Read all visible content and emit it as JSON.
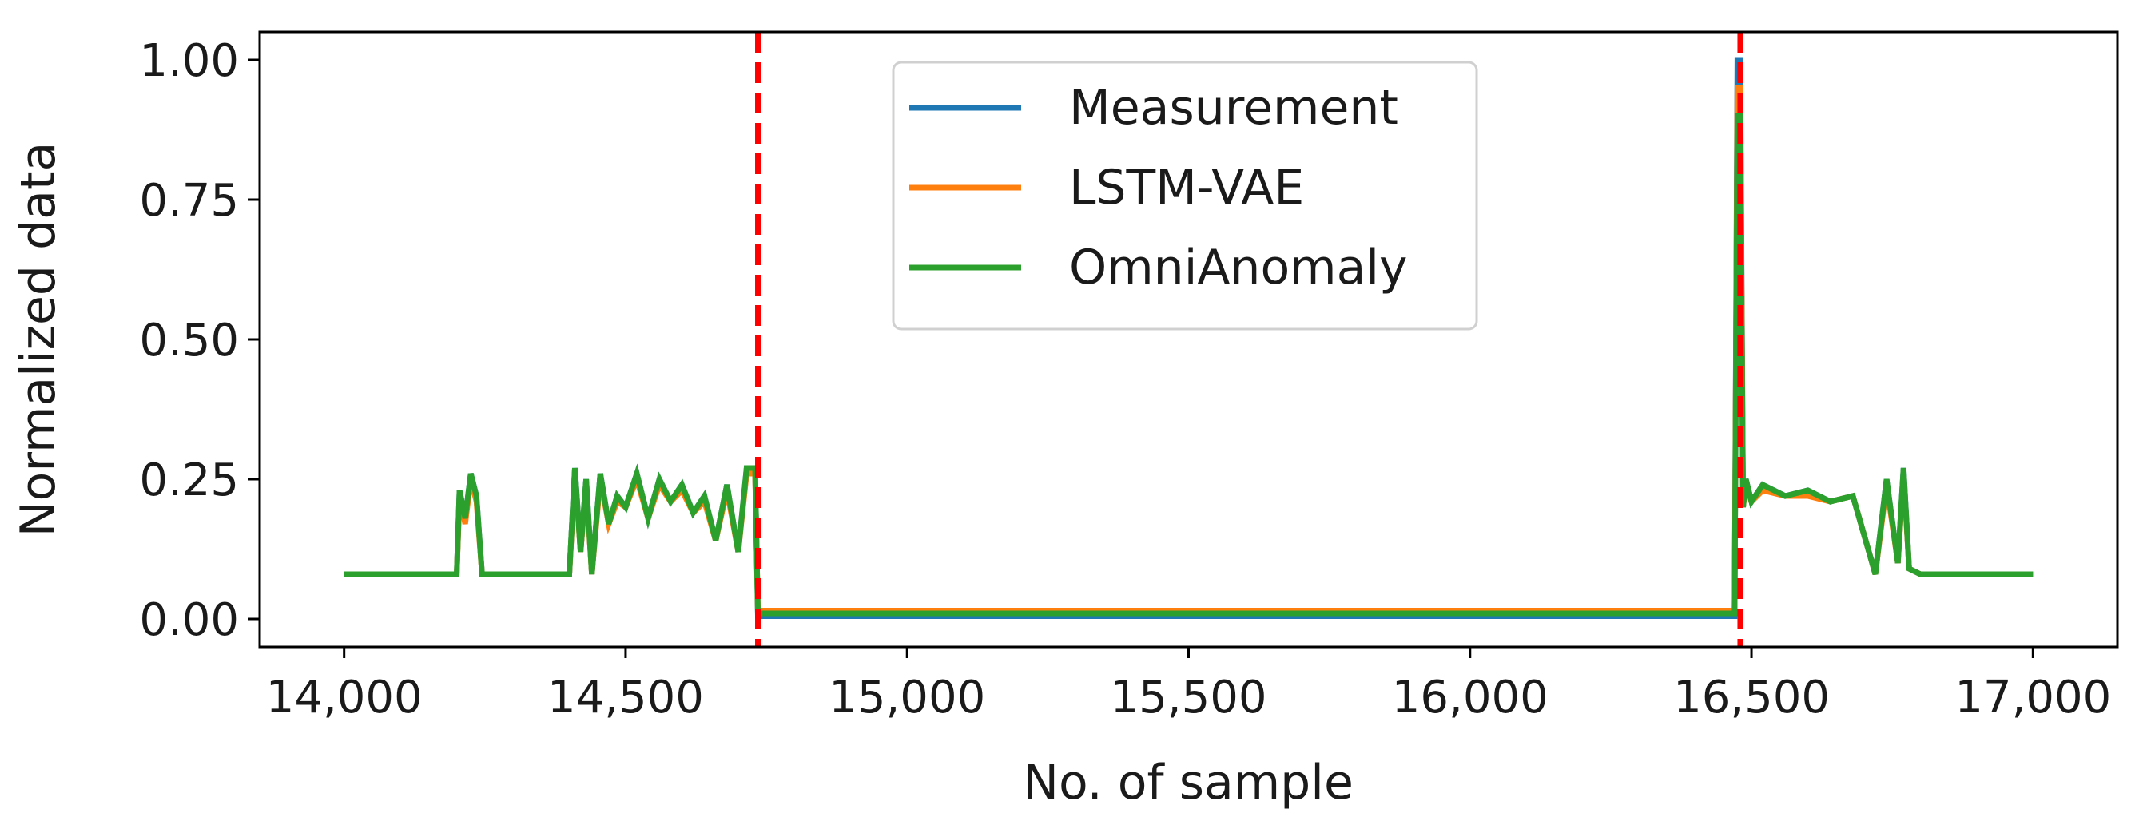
{
  "chart_data": {
    "type": "line",
    "title": "",
    "xlabel": "No. of sample",
    "ylabel": "Normalized data",
    "xlim": [
      13850,
      17150
    ],
    "ylim": [
      -0.05,
      1.05
    ],
    "xticks": [
      14000,
      14500,
      15000,
      15500,
      16000,
      16500,
      17000
    ],
    "xtick_labels": [
      "14,000",
      "14,500",
      "15,000",
      "15,500",
      "16,000",
      "16,500",
      "17,000"
    ],
    "yticks": [
      0.0,
      0.25,
      0.5,
      0.75,
      1.0
    ],
    "ytick_labels": [
      "0.00",
      "0.25",
      "0.50",
      "0.75",
      "1.00"
    ],
    "grid": false,
    "legend_position": "top-center",
    "series": [
      {
        "name": "Measurement",
        "color": "#1f77b4",
        "x": [
          14000,
          14200,
          14205,
          14215,
          14225,
          14235,
          14245,
          14255,
          14400,
          14410,
          14420,
          14430,
          14440,
          14455,
          14470,
          14485,
          14500,
          14520,
          14540,
          14560,
          14580,
          14600,
          14620,
          14640,
          14660,
          14680,
          14700,
          14715,
          14730,
          14735,
          16470,
          16475,
          16480,
          16485,
          16490,
          16500,
          16520,
          16560,
          16600,
          16640,
          16680,
          16700,
          16720,
          16740,
          16760,
          16770,
          16780,
          16800,
          16820,
          17000
        ],
        "y": [
          0.08,
          0.08,
          0.23,
          0.18,
          0.26,
          0.22,
          0.08,
          0.08,
          0.08,
          0.27,
          0.12,
          0.25,
          0.08,
          0.26,
          0.17,
          0.22,
          0.2,
          0.26,
          0.18,
          0.25,
          0.21,
          0.24,
          0.19,
          0.22,
          0.14,
          0.24,
          0.12,
          0.27,
          0.27,
          0.005,
          0.005,
          1.0,
          1.0,
          0.2,
          0.25,
          0.21,
          0.24,
          0.22,
          0.23,
          0.21,
          0.22,
          0.15,
          0.08,
          0.25,
          0.1,
          0.27,
          0.09,
          0.08,
          0.08,
          0.08
        ]
      },
      {
        "name": "LSTM-VAE",
        "color": "#ff7f0e",
        "x": [
          14000,
          14200,
          14205,
          14215,
          14225,
          14235,
          14245,
          14255,
          14400,
          14410,
          14420,
          14430,
          14440,
          14455,
          14470,
          14485,
          14500,
          14520,
          14540,
          14560,
          14580,
          14600,
          14620,
          14640,
          14660,
          14680,
          14700,
          14715,
          14730,
          14735,
          16470,
          16475,
          16480,
          16485,
          16490,
          16500,
          16520,
          16560,
          16600,
          16640,
          16680,
          16700,
          16720,
          16740,
          16760,
          16770,
          16780,
          16800,
          16820,
          17000
        ],
        "y": [
          0.08,
          0.08,
          0.22,
          0.17,
          0.25,
          0.21,
          0.08,
          0.08,
          0.08,
          0.26,
          0.12,
          0.24,
          0.08,
          0.25,
          0.17,
          0.21,
          0.2,
          0.25,
          0.18,
          0.24,
          0.21,
          0.23,
          0.19,
          0.21,
          0.14,
          0.23,
          0.12,
          0.26,
          0.26,
          0.015,
          0.015,
          0.95,
          0.95,
          0.2,
          0.24,
          0.21,
          0.23,
          0.22,
          0.22,
          0.21,
          0.22,
          0.15,
          0.08,
          0.24,
          0.1,
          0.26,
          0.09,
          0.08,
          0.08,
          0.08
        ]
      },
      {
        "name": "OmniAnomaly",
        "color": "#2ca02c",
        "x": [
          14000,
          14200,
          14205,
          14215,
          14225,
          14235,
          14245,
          14255,
          14400,
          14410,
          14420,
          14430,
          14440,
          14455,
          14470,
          14485,
          14500,
          14520,
          14540,
          14560,
          14580,
          14600,
          14620,
          14640,
          14660,
          14680,
          14700,
          14715,
          14730,
          14735,
          16470,
          16475,
          16480,
          16485,
          16490,
          16500,
          16520,
          16560,
          16600,
          16640,
          16680,
          16700,
          16720,
          16740,
          16760,
          16770,
          16780,
          16800,
          16820,
          17000
        ],
        "y": [
          0.08,
          0.08,
          0.23,
          0.18,
          0.26,
          0.22,
          0.08,
          0.08,
          0.08,
          0.27,
          0.12,
          0.25,
          0.08,
          0.26,
          0.17,
          0.22,
          0.2,
          0.26,
          0.18,
          0.25,
          0.21,
          0.24,
          0.19,
          0.22,
          0.14,
          0.24,
          0.12,
          0.27,
          0.27,
          0.01,
          0.01,
          0.9,
          0.9,
          0.2,
          0.25,
          0.21,
          0.24,
          0.22,
          0.23,
          0.21,
          0.22,
          0.15,
          0.08,
          0.25,
          0.1,
          0.27,
          0.09,
          0.08,
          0.08,
          0.08
        ]
      }
    ],
    "annotations": [
      {
        "type": "vline",
        "x": 14735,
        "style": "dashed",
        "color": "#ff0000"
      },
      {
        "type": "vline",
        "x": 16480,
        "style": "dashed",
        "color": "#ff0000"
      }
    ]
  }
}
